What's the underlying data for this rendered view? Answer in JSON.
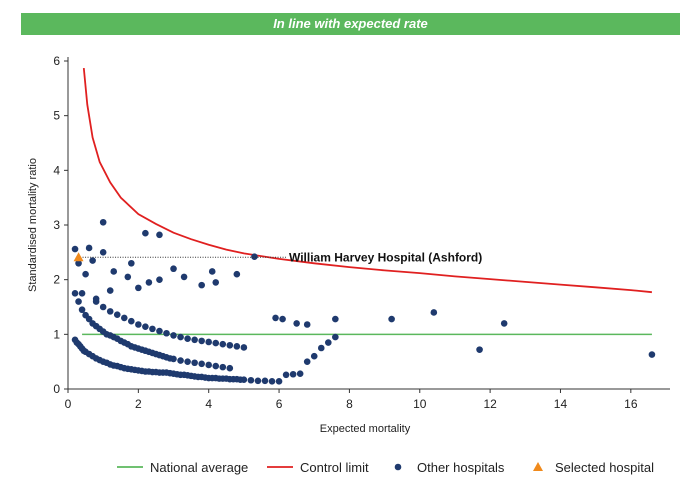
{
  "banner": {
    "text": "In line with expected rate",
    "color": "#5bb85d"
  },
  "colors": {
    "national": "#5bb85d",
    "control": "#e02020",
    "other": "#1f3a6e",
    "selected": "#f08a1c",
    "axis": "#333333"
  },
  "chart_data": {
    "type": "scatter",
    "title": "",
    "xlabel": "Expected mortality",
    "ylabel": "Standardised mortality ratio",
    "xlim": [
      0,
      17
    ],
    "ylim": [
      0,
      6
    ],
    "xticks": [
      0,
      2,
      4,
      6,
      8,
      10,
      12,
      14,
      16
    ],
    "yticks": [
      0,
      1,
      2,
      3,
      4,
      5,
      6
    ],
    "grid": false,
    "legend_position": "bottom",
    "legend": {
      "national": "National average",
      "control": "Control limit",
      "other": "Other hospitals",
      "selected": "Selected hospital"
    },
    "annotation": {
      "text": "William Harvey Hospital (Ashford)",
      "x": 0.3,
      "y": 2.41
    },
    "national_average": 1,
    "control_limit": [
      [
        0.45,
        5.87
      ],
      [
        0.55,
        5.2
      ],
      [
        0.7,
        4.6
      ],
      [
        0.9,
        4.15
      ],
      [
        1.2,
        3.78
      ],
      [
        1.5,
        3.5
      ],
      [
        2.0,
        3.2
      ],
      [
        2.5,
        3.02
      ],
      [
        3.0,
        2.86
      ],
      [
        3.5,
        2.74
      ],
      [
        4.0,
        2.64
      ],
      [
        4.5,
        2.55
      ],
      [
        5.0,
        2.48
      ],
      [
        6.0,
        2.38
      ],
      [
        7.0,
        2.3
      ],
      [
        8.0,
        2.23
      ],
      [
        9.0,
        2.17
      ],
      [
        10.0,
        2.12
      ],
      [
        11.0,
        2.06
      ],
      [
        12.0,
        2.01
      ],
      [
        13.0,
        1.96
      ],
      [
        14.0,
        1.91
      ],
      [
        15.0,
        1.86
      ],
      [
        16.0,
        1.81
      ],
      [
        16.6,
        1.77
      ]
    ],
    "selected_hospital": {
      "x": 0.3,
      "y": 2.41
    },
    "other_hospitals": {
      "x": [
        0.2,
        0.6,
        0.3,
        0.5,
        0.7,
        1.0,
        1.3,
        1.8,
        2.2,
        2.6,
        3.0,
        3.3,
        4.1,
        4.8,
        5.3,
        5.9,
        6.1,
        6.5,
        6.8,
        7.6,
        9.2,
        10.4,
        12.4,
        11.7,
        16.6,
        2.3,
        2.6,
        1.0,
        1.7,
        2.0,
        3.8,
        4.2,
        1.2,
        0.4,
        0.8,
        0.2,
        0.25,
        0.3,
        0.35,
        0.4,
        0.45,
        0.5,
        0.6,
        0.7,
        0.8,
        0.9,
        1.0,
        1.1,
        1.2,
        1.3,
        1.4,
        1.5,
        1.6,
        1.7,
        1.8,
        1.9,
        2.0,
        2.1,
        2.2,
        2.3,
        2.4,
        2.5,
        2.6,
        2.7,
        2.8,
        2.9,
        3.0,
        3.1,
        3.2,
        3.3,
        3.4,
        3.5,
        3.6,
        3.7,
        3.8,
        3.9,
        4.0,
        4.1,
        4.2,
        4.3,
        4.4,
        4.5,
        4.6,
        4.7,
        4.8,
        4.9,
        5.0,
        5.2,
        5.4,
        5.6,
        5.8,
        6.0,
        6.2,
        6.4,
        6.6,
        6.8,
        7.0,
        7.2,
        7.4,
        7.6,
        0.2,
        0.3,
        0.4,
        0.5,
        0.6,
        0.7,
        0.8,
        0.9,
        1.0,
        1.1,
        1.2,
        1.3,
        1.4,
        1.5,
        1.6,
        1.7,
        1.8,
        1.9,
        2.0,
        2.1,
        2.2,
        2.3,
        2.4,
        2.5,
        2.6,
        2.7,
        2.8,
        2.9,
        3.0,
        3.2,
        3.4,
        3.6,
        3.8,
        4.0,
        4.2,
        4.4,
        4.6,
        0.8,
        1.0,
        1.2,
        1.4,
        1.6,
        1.8,
        2.0,
        2.2,
        2.4,
        2.6,
        2.8,
        3.0,
        3.2,
        3.4,
        3.6,
        3.8,
        4.0,
        4.2,
        4.4,
        4.6,
        4.8,
        5.0
      ],
      "y": [
        2.56,
        2.58,
        2.3,
        2.1,
        2.35,
        3.05,
        2.15,
        2.3,
        2.85,
        2.82,
        2.2,
        2.05,
        2.15,
        2.1,
        2.42,
        1.3,
        1.28,
        1.2,
        1.18,
        1.28,
        1.28,
        1.4,
        1.2,
        0.72,
        0.63,
        1.95,
        2.0,
        2.5,
        2.05,
        1.85,
        1.9,
        1.95,
        1.8,
        1.75,
        1.65,
        0.9,
        0.85,
        0.82,
        0.78,
        0.74,
        0.7,
        0.68,
        0.64,
        0.6,
        0.56,
        0.53,
        0.5,
        0.48,
        0.45,
        0.43,
        0.42,
        0.4,
        0.38,
        0.37,
        0.36,
        0.35,
        0.34,
        0.33,
        0.32,
        0.32,
        0.31,
        0.31,
        0.3,
        0.3,
        0.3,
        0.29,
        0.28,
        0.27,
        0.26,
        0.26,
        0.25,
        0.24,
        0.23,
        0.22,
        0.22,
        0.21,
        0.2,
        0.2,
        0.2,
        0.19,
        0.19,
        0.19,
        0.18,
        0.18,
        0.18,
        0.17,
        0.17,
        0.16,
        0.15,
        0.15,
        0.14,
        0.14,
        0.26,
        0.27,
        0.28,
        0.5,
        0.6,
        0.75,
        0.85,
        0.95,
        1.75,
        1.6,
        1.45,
        1.35,
        1.28,
        1.2,
        1.15,
        1.1,
        1.05,
        1.0,
        0.98,
        0.95,
        0.92,
        0.88,
        0.85,
        0.82,
        0.78,
        0.76,
        0.74,
        0.72,
        0.7,
        0.68,
        0.66,
        0.64,
        0.62,
        0.6,
        0.58,
        0.56,
        0.55,
        0.52,
        0.5,
        0.48,
        0.46,
        0.44,
        0.42,
        0.4,
        0.38,
        1.6,
        1.5,
        1.42,
        1.36,
        1.3,
        1.24,
        1.18,
        1.14,
        1.1,
        1.06,
        1.02,
        0.98,
        0.95,
        0.92,
        0.9,
        0.88,
        0.86,
        0.84,
        0.82,
        0.8,
        0.78,
        0.76
      ]
    }
  }
}
